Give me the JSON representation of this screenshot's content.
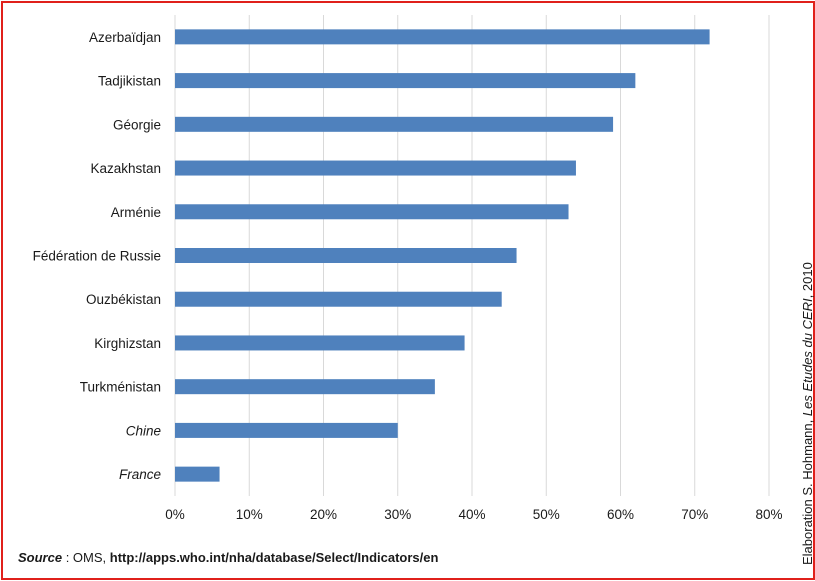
{
  "chart_data": {
    "type": "bar",
    "orientation": "horizontal",
    "categories": [
      "Azerbaïdjan",
      "Tadjikistan",
      "Géorgie",
      "Kazakhstan",
      "Arménie",
      "Fédération de Russie",
      "Ouzbékistan",
      "Kirghizstan",
      "Turkménistan",
      "Chine",
      "France"
    ],
    "italic_categories": [
      "Chine",
      "France"
    ],
    "values": [
      72,
      62,
      59,
      54,
      53,
      46,
      44,
      39,
      35,
      30,
      6
    ],
    "xlim": [
      0,
      80
    ],
    "xticks": [
      0,
      10,
      20,
      30,
      40,
      50,
      60,
      70,
      80
    ],
    "tick_suffix": "%",
    "grid": true,
    "bar_color": "#4f81bd",
    "title": "",
    "xlabel": "",
    "ylabel": ""
  },
  "source": {
    "label": "Source",
    "separator": " : ",
    "org": "OMS, ",
    "url": "http://apps.who.int/nha/database/Select/Indicators/en"
  },
  "credit": {
    "prefix": "Elaboration S. Hohmann, ",
    "publication": "Les Etudes du CERI",
    "suffix": ", 2010"
  },
  "frame_color": "#e0201b"
}
